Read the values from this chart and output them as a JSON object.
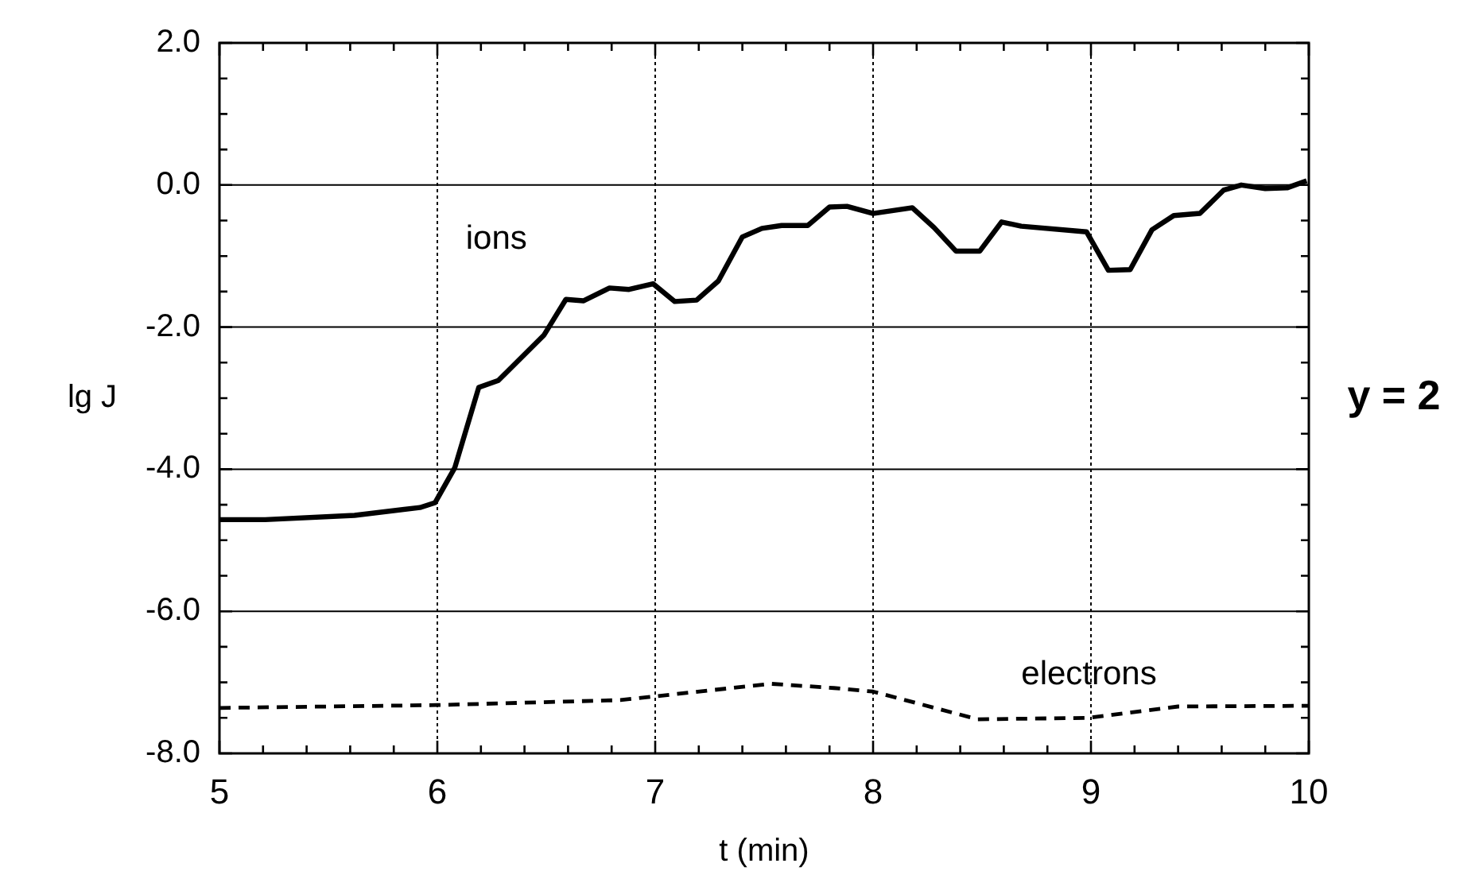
{
  "chart_data": {
    "type": "line",
    "xlabel": "t (min)",
    "ylabel": "lg J",
    "annotations": [
      "y = 2"
    ],
    "xlim": [
      5,
      10
    ],
    "xticks": [
      5,
      {
        "value": 5.2,
        "label": null
      },
      {
        "value": 5.4,
        "label": null
      },
      {
        "value": 5.6,
        "label": null
      },
      {
        "value": 5.8,
        "label": null
      },
      6,
      {
        "value": 6.2,
        "label": null
      },
      {
        "value": 6.4,
        "label": null
      },
      {
        "value": 6.6,
        "label": null
      },
      {
        "value": 6.8,
        "label": null
      },
      7,
      {
        "value": 7.2,
        "label": null
      },
      {
        "value": 7.4,
        "label": null
      },
      {
        "value": 7.6,
        "label": null
      },
      {
        "value": 7.8,
        "label": null
      },
      8,
      {
        "value": 8.2,
        "label": null
      },
      {
        "value": 8.4,
        "label": null
      },
      {
        "value": 8.6,
        "label": null
      },
      {
        "value": 8.8,
        "label": null
      },
      9,
      {
        "value": 9.2,
        "label": null
      },
      {
        "value": 9.4,
        "label": null
      },
      {
        "value": 9.6,
        "label": null
      },
      {
        "value": 9.8,
        "label": null
      },
      10
    ],
    "ylim": [
      -8,
      2
    ],
    "yticks": [
      {
        "value": -8,
        "label": "-8.0"
      },
      {
        "value": -7.5,
        "label": null
      },
      {
        "value": -7,
        "label": null
      },
      {
        "value": -6.5,
        "label": null
      },
      {
        "value": -6,
        "label": "-6.0"
      },
      {
        "value": -5.5,
        "label": null
      },
      {
        "value": -5,
        "label": null
      },
      {
        "value": -4.5,
        "label": null
      },
      {
        "value": -4,
        "label": "-4.0"
      },
      {
        "value": -3.5,
        "label": null
      },
      {
        "value": -3,
        "label": null
      },
      {
        "value": -2.5,
        "label": null
      },
      {
        "value": -2,
        "label": "-2.0"
      },
      {
        "value": -1.5,
        "label": null
      },
      {
        "value": -1,
        "label": null
      },
      {
        "value": -0.5,
        "label": null
      },
      {
        "value": 0,
        "label": "0.0"
      },
      {
        "value": 0.5,
        "label": null
      },
      {
        "value": 1,
        "label": null
      },
      {
        "value": 1.5,
        "label": null
      },
      {
        "value": 2,
        "label": "2.0"
      }
    ],
    "grid": true,
    "legend": false,
    "marker": "none",
    "series": [
      {
        "name": "ions",
        "color": "#000000",
        "line_style": "solid",
        "x": [
          5.0,
          5.21,
          5.62,
          5.92,
          5.99,
          6.08,
          6.19,
          6.28,
          6.49,
          6.59,
          6.67,
          6.79,
          6.88,
          6.99,
          7.09,
          7.19,
          7.29,
          7.4,
          7.49,
          7.58,
          7.7,
          7.8,
          7.88,
          8.0,
          8.18,
          8.28,
          8.38,
          8.49,
          8.59,
          8.68,
          8.98,
          9.08,
          9.18,
          9.28,
          9.38,
          9.5,
          9.61,
          9.69,
          9.8,
          9.9,
          9.99
        ],
        "values": [
          -4.71,
          -4.71,
          -4.65,
          -4.54,
          -4.47,
          -3.98,
          -2.85,
          -2.75,
          -2.11,
          -1.61,
          -1.63,
          -1.45,
          -1.47,
          -1.39,
          -1.64,
          -1.62,
          -1.35,
          -0.73,
          -0.61,
          -0.57,
          -0.57,
          -0.31,
          -0.3,
          -0.4,
          -0.32,
          -0.6,
          -0.93,
          -0.93,
          -0.52,
          -0.58,
          -0.66,
          -1.2,
          -1.19,
          -0.63,
          -0.43,
          -0.4,
          -0.07,
          0.0,
          -0.05,
          -0.04,
          0.06
        ]
      },
      {
        "name": "electrons",
        "color": "#000000",
        "line_style": "dashed",
        "x": [
          5.0,
          6.0,
          6.84,
          6.99,
          7.53,
          7.82,
          8.0,
          8.48,
          8.99,
          9.4,
          10.0
        ],
        "values": [
          -7.36,
          -7.32,
          -7.25,
          -7.2,
          -7.02,
          -7.08,
          -7.13,
          -7.52,
          -7.5,
          -7.34,
          -7.33
        ]
      }
    ]
  }
}
